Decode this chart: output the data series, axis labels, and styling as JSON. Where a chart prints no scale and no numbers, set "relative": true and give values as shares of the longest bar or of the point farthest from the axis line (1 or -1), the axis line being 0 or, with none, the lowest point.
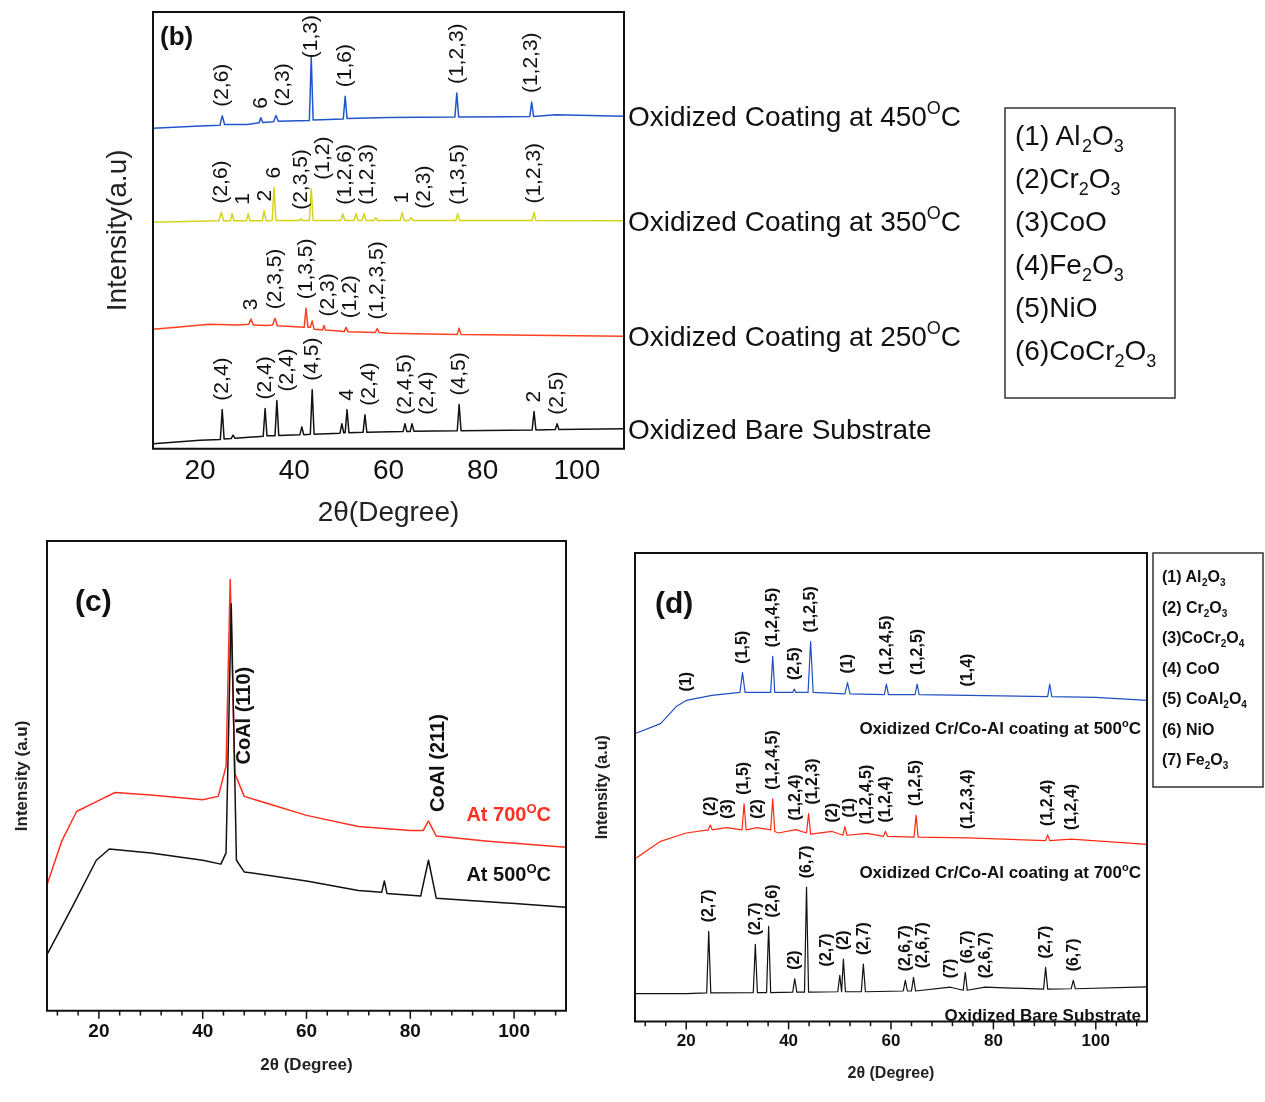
{
  "chart_data": [
    {
      "type": "line",
      "relative": true,
      "grid": false,
      "xlabel": "2θ(Degree)",
      "ylabel": "Intensity(a.u)",
      "xlim": [
        10,
        110
      ],
      "xticks": [
        20,
        40,
        60,
        80,
        100
      ],
      "annotations": [
        "(b)",
        "(1) Al$_{2}$O$_{3}$",
        "(2)Cr$_{2}$O$_{3}$",
        "(3)CoO",
        "(4)Fe$_{2}$O$_{3}$",
        "(5)NiO",
        "(6)CoCr$_{2}$O$_{3}$",
        {
          "text": "(2,6)",
          "x": 24.7,
          "y": 0.85
        },
        {
          "text": "6",
          "x": 32.9,
          "y": 0.845
        },
        {
          "text": "(2,3)",
          "x": 36.1,
          "y": 0.851
        },
        {
          "text": "(1,3)",
          "x": 43.6,
          "y": 1.0
        },
        {
          "text": "(1,6)",
          "x": 50.8,
          "y": 0.9
        },
        {
          "text": "(1,2,3)",
          "x": 74.5,
          "y": 0.908
        },
        {
          "text": "(1,2,3)",
          "x": 90.4,
          "y": 0.885
        },
        {
          "text": "(2,6)",
          "x": 24.5,
          "y": 0.603
        },
        {
          "text": "1",
          "x": 26.8,
          "y": 0.6
        },
        {
          "text": "2",
          "x": 33.6,
          "y": 0.608
        },
        {
          "text": "6",
          "x": 35.7,
          "y": 0.667
        },
        {
          "text": "(2,3,5)",
          "x": 41.4,
          "y": 0.587
        },
        {
          "text": "(1,2)",
          "x": 43.6,
          "y": 0.664
        },
        {
          "text": "(1,2,6)",
          "x": 50.3,
          "y": 0.6
        },
        {
          "text": "(1,2,3)",
          "x": 54.8,
          "y": 0.6
        },
        {
          "text": "1",
          "x": 62.9,
          "y": 0.603
        },
        {
          "text": "(2,3)",
          "x": 64.8,
          "y": 0.59
        },
        {
          "text": "(1,3,5)",
          "x": 74.7,
          "y": 0.6
        },
        {
          "text": "(1,2,3)",
          "x": 90.9,
          "y": 0.603
        },
        {
          "text": "3",
          "x": 30.8,
          "y": 0.331
        },
        {
          "text": "(2,3,5)",
          "x": 35.9,
          "y": 0.333
        },
        {
          "text": "(1,3,5)",
          "x": 42.5,
          "y": 0.359
        },
        {
          "text": "(2,3)",
          "x": 46.3,
          "y": 0.315
        },
        {
          "text": "(1,2)",
          "x": 51,
          "y": 0.31
        },
        {
          "text": "(1,2,3,5)",
          "x": 57.6,
          "y": 0.307
        },
        {
          "text": "(2,4)",
          "x": 24.7,
          "y": 0.1
        },
        {
          "text": "(2,4)",
          "x": 33.8,
          "y": 0.103
        },
        {
          "text": "(2,4)",
          "x": 36.3,
          "y": 0.123
        },
        {
          "text": "(4,5)",
          "x": 43.8,
          "y": 0.151
        },
        {
          "text": "4",
          "x": 51.2,
          "y": 0.1
        },
        {
          "text": "(2,4)",
          "x": 55,
          "y": 0.087
        },
        {
          "text": "(2,4,5)",
          "x": 63.5,
          "y": 0.064
        },
        {
          "text": "(2,4)",
          "x": 65,
          "y": 0.064
        },
        {
          "text": "(4,5)",
          "x": 75,
          "y": 0.113
        },
        {
          "text": "2",
          "x": 90.9,
          "y": 0.095
        },
        {
          "text": "(2,5)",
          "x": 95.8,
          "y": 0.064
        }
      ],
      "series": [
        {
          "name": "Oxidized Coating at 450$^{O}$C",
          "color": "#2255cc",
          "x": [
            10,
            20,
            24.2,
            24.7,
            25.2,
            30,
            32.5,
            32.9,
            33.3,
            35.6,
            36.1,
            36.6,
            43.2,
            43.6,
            44,
            50.4,
            50.8,
            51.2,
            60,
            74.1,
            74.5,
            74.9,
            90,
            90.4,
            90.8,
            95.5,
            110
          ],
          "values": [
            0.818,
            0.824,
            0.826,
            0.85,
            0.828,
            0.828,
            0.832,
            0.845,
            0.833,
            0.835,
            0.851,
            0.836,
            0.838,
            1.0,
            0.839,
            0.842,
            0.9,
            0.843,
            0.846,
            0.847,
            0.908,
            0.847,
            0.848,
            0.885,
            0.848,
            0.853,
            0.849
          ]
        },
        {
          "name": "Oxidized Coating at 350$^{O}$C",
          "color": "#d4d41a",
          "x": [
            10,
            24,
            24.5,
            25,
            26.4,
            26.8,
            27.2,
            29.8,
            30.2,
            30.6,
            33.2,
            33.6,
            34,
            35.3,
            35.7,
            36.1,
            41,
            41.4,
            41.8,
            43.2,
            43.6,
            44,
            49.9,
            50.3,
            50.7,
            52.7,
            53.1,
            53.5,
            54.4,
            54.8,
            55.2,
            56.9,
            57.3,
            57.7,
            62.5,
            62.9,
            63.3,
            64.4,
            64.8,
            65.2,
            74.3,
            74.7,
            75.1,
            90.5,
            90.9,
            91.3,
            110
          ],
          "values": [
            0.578,
            0.582,
            0.603,
            0.582,
            0.582,
            0.6,
            0.582,
            0.582,
            0.6,
            0.582,
            0.582,
            0.608,
            0.582,
            0.583,
            0.667,
            0.583,
            0.583,
            0.587,
            0.583,
            0.583,
            0.664,
            0.583,
            0.583,
            0.6,
            0.583,
            0.583,
            0.6,
            0.583,
            0.583,
            0.6,
            0.583,
            0.583,
            0.59,
            0.583,
            0.583,
            0.603,
            0.583,
            0.583,
            0.59,
            0.583,
            0.583,
            0.6,
            0.583,
            0.583,
            0.603,
            0.583,
            0.582
          ]
        },
        {
          "name": "Oxidized Coating at 250$^{O}$C",
          "color": "#ff4020",
          "x": [
            10,
            15,
            22,
            28,
            30.3,
            30.8,
            31.3,
            34,
            35.4,
            35.9,
            36.4,
            42.1,
            42.5,
            42.9,
            43.4,
            43.8,
            44.2,
            46,
            46.3,
            46.6,
            50,
            50.6,
            51,
            51.4,
            57.2,
            57.6,
            58,
            60,
            74.6,
            75,
            75.4,
            90,
            110
          ],
          "values": [
            0.305,
            0.31,
            0.318,
            0.316,
            0.318,
            0.331,
            0.316,
            0.315,
            0.316,
            0.333,
            0.314,
            0.31,
            0.359,
            0.31,
            0.31,
            0.326,
            0.305,
            0.303,
            0.315,
            0.303,
            0.3,
            0.299,
            0.31,
            0.299,
            0.297,
            0.307,
            0.297,
            0.295,
            0.292,
            0.308,
            0.292,
            0.29,
            0.287
          ]
        },
        {
          "name": "Oxidized Bare Substrate",
          "color": "#111111",
          "x": [
            10,
            20,
            24.3,
            24.7,
            25.1,
            26.6,
            27,
            27.4,
            33.4,
            33.8,
            34.2,
            35.9,
            36.3,
            36.7,
            41.2,
            41.6,
            42,
            43.4,
            43.8,
            44.2,
            49.7,
            50.1,
            50.5,
            50.8,
            51.2,
            51.6,
            54.6,
            55,
            55.4,
            63.1,
            63.5,
            63.9,
            64.6,
            65,
            65.4,
            74.6,
            75,
            75.4,
            90.5,
            90.9,
            91.3,
            95.4,
            95.8,
            96.2,
            110
          ],
          "values": [
            0.013,
            0.022,
            0.024,
            0.1,
            0.025,
            0.026,
            0.035,
            0.027,
            0.032,
            0.103,
            0.033,
            0.033,
            0.123,
            0.034,
            0.036,
            0.056,
            0.036,
            0.037,
            0.151,
            0.037,
            0.04,
            0.064,
            0.041,
            0.041,
            0.1,
            0.041,
            0.042,
            0.087,
            0.042,
            0.044,
            0.064,
            0.044,
            0.044,
            0.064,
            0.045,
            0.046,
            0.113,
            0.046,
            0.048,
            0.095,
            0.048,
            0.049,
            0.064,
            0.049,
            0.051
          ]
        }
      ]
    },
    {
      "type": "line",
      "relative": true,
      "grid": false,
      "xlabel": "2θ (Degree)",
      "ylabel": "Intensity (a.u)",
      "xlim": [
        10,
        110
      ],
      "xticks": [
        {
          "value": 12,
          "label": null
        },
        {
          "value": 16,
          "label": null
        },
        20,
        {
          "value": 24,
          "label": null
        },
        {
          "value": 28,
          "label": null
        },
        {
          "value": 32,
          "label": null
        },
        {
          "value": 36,
          "label": null
        },
        40,
        {
          "value": 44,
          "label": null
        },
        {
          "value": 48,
          "label": null
        },
        {
          "value": 52,
          "label": null
        },
        {
          "value": 56,
          "label": null
        },
        60,
        {
          "value": 64,
          "label": null
        },
        {
          "value": 68,
          "label": null
        },
        {
          "value": 72,
          "label": null
        },
        {
          "value": 76,
          "label": null
        },
        80,
        {
          "value": 84,
          "label": null
        },
        {
          "value": 88,
          "label": null
        },
        {
          "value": 92,
          "label": null
        },
        {
          "value": 96,
          "label": null
        },
        100,
        {
          "value": 104,
          "label": null
        },
        {
          "value": 108,
          "label": null
        }
      ],
      "annotations": [
        "(c)",
        {
          "text": "CoAl (110)",
          "x": 46.2,
          "y": 0.55
        },
        {
          "text": "CoAl (211)",
          "x": 83.5,
          "y": 0.44
        }
      ],
      "series": [
        {
          "name": "At 700$^{O}$C",
          "color": "#ff3020",
          "x": [
            10,
            12.8,
            15.7,
            20.2,
            23.1,
            30,
            40,
            43,
            44.5,
            45.3,
            46.2,
            48,
            60,
            70,
            80,
            82.5,
            83.5,
            85,
            95,
            110
          ],
          "values": [
            0.292,
            0.392,
            0.462,
            0.489,
            0.506,
            0.5,
            0.489,
            0.497,
            0.567,
            1.0,
            0.55,
            0.497,
            0.453,
            0.427,
            0.418,
            0.418,
            0.44,
            0.405,
            0.393,
            0.379
          ]
        },
        {
          "name": "At 500$^{O}$C",
          "color": "#111111",
          "x": [
            10,
            15,
            19.5,
            22,
            30,
            40,
            43.5,
            44.5,
            45.5,
            46.5,
            48,
            60,
            70,
            74.5,
            75,
            75.5,
            82,
            83.5,
            85,
            95,
            110
          ],
          "values": [
            0.13,
            0.244,
            0.349,
            0.375,
            0.366,
            0.349,
            0.34,
            0.366,
            0.943,
            0.349,
            0.322,
            0.301,
            0.279,
            0.275,
            0.301,
            0.272,
            0.266,
            0.349,
            0.261,
            0.253,
            0.24
          ]
        }
      ]
    },
    {
      "type": "line",
      "relative": true,
      "grid": false,
      "xlabel": "2θ (Degree)",
      "ylabel": "Intensity (a.u)",
      "xlim": [
        10,
        110
      ],
      "xticks": [
        {
          "value": 12,
          "label": null
        },
        {
          "value": 16,
          "label": null
        },
        20,
        {
          "value": 24,
          "label": null
        },
        {
          "value": 28,
          "label": null
        },
        {
          "value": 32,
          "label": null
        },
        {
          "value": 36,
          "label": null
        },
        40,
        {
          "value": 44,
          "label": null
        },
        {
          "value": 48,
          "label": null
        },
        {
          "value": 52,
          "label": null
        },
        {
          "value": 56,
          "label": null
        },
        60,
        {
          "value": 64,
          "label": null
        },
        {
          "value": 68,
          "label": null
        },
        {
          "value": 72,
          "label": null
        },
        {
          "value": 76,
          "label": null
        },
        80,
        {
          "value": 84,
          "label": null
        },
        {
          "value": 88,
          "label": null
        },
        {
          "value": 92,
          "label": null
        },
        {
          "value": 96,
          "label": null
        },
        100,
        {
          "value": 104,
          "label": null
        },
        {
          "value": 108,
          "label": null
        }
      ],
      "annotations": [
        "(d)",
        "(1) Al$_{2}$O$_{3}$",
        "(2) Cr$_{2}$O$_{3}$",
        "(3)CoCr$_{2}$O$_{4}$",
        "(4) CoO",
        "(5) CoAl$_{2}$O$_{4}$",
        "(6) NiO",
        "(7) Fe$_{2}$O$_{3}$",
        {
          "text": "(1)",
          "x": 20,
          "y": 0.845
        },
        {
          "text": "(1,5)",
          "x": 31,
          "y": 0.918
        },
        {
          "text": "(1,2,4,5)",
          "x": 36.9,
          "y": 0.961
        },
        {
          "text": "(2,5)",
          "x": 41.1,
          "y": 0.875
        },
        {
          "text": "(1,2,5)",
          "x": 44.3,
          "y": 1.0
        },
        {
          "text": "(1)",
          "x": 51.5,
          "y": 0.892
        },
        {
          "text": "(1,2,4,5)",
          "x": 59.1,
          "y": 0.888
        },
        {
          "text": "(1,2,5)",
          "x": 65.1,
          "y": 0.888
        },
        {
          "text": "(1,4)",
          "x": 75,
          "y": 0.858
        },
        {
          "text": "(2)",
          "x": 24.7,
          "y": 0.517
        },
        {
          "text": "(3)",
          "x": 27.8,
          "y": 0.51
        },
        {
          "text": "(1,5)",
          "x": 31.3,
          "y": 0.573
        },
        {
          "text": "(2)",
          "x": 33.9,
          "y": 0.51
        },
        {
          "text": "(1,2,4,5)",
          "x": 36.9,
          "y": 0.586
        },
        {
          "text": "(1,2,4)",
          "x": 41.4,
          "y": 0.505
        },
        {
          "text": "(1,2,3)",
          "x": 43.9,
          "y": 0.547
        },
        {
          "text": "(2)",
          "x": 48.5,
          "y": 0.5
        },
        {
          "text": "(1)",
          "x": 51,
          "y": 0.513
        },
        {
          "text": "(1,2,4,5)",
          "x": 55.3,
          "y": 0.495
        },
        {
          "text": "(1,2,4)",
          "x": 58.9,
          "y": 0.5
        },
        {
          "text": "(1,2,5)",
          "x": 64.9,
          "y": 0.543
        },
        {
          "text": "(1,2,3,4)",
          "x": 75,
          "y": 0.483
        },
        {
          "text": "(1,2,4)",
          "x": 90.6,
          "y": 0.491
        },
        {
          "text": "(1,2,4)",
          "x": 95.2,
          "y": 0.48
        },
        {
          "text": "(2,7)",
          "x": 24.4,
          "y": 0.237
        },
        {
          "text": "(2,7)",
          "x": 33.5,
          "y": 0.203
        },
        {
          "text": "(2,6)",
          "x": 36.1,
          "y": 0.25
        },
        {
          "text": "(2)",
          "x": 41.2,
          "y": 0.112
        },
        {
          "text": "(6,7)",
          "x": 43.5,
          "y": 0.353
        },
        {
          "text": "(2)",
          "x": 50.7,
          "y": 0.164
        },
        {
          "text": "(2,7)",
          "x": 50,
          "y": 0.121
        },
        {
          "text": "(2,7)",
          "x": 54.6,
          "y": 0.151
        },
        {
          "text": "(2,6,7)",
          "x": 62.8,
          "y": 0.108
        },
        {
          "text": "(2,6,7)",
          "x": 64.4,
          "y": 0.116
        },
        {
          "text": "(7)",
          "x": 71.6,
          "y": 0.09
        },
        {
          "text": "(6,7)",
          "x": 74.5,
          "y": 0.129
        },
        {
          "text": "(2,6,7)",
          "x": 78.4,
          "y": 0.09
        },
        {
          "text": "(2,7)",
          "x": 90.2,
          "y": 0.142
        },
        {
          "text": "(6,7)",
          "x": 95.6,
          "y": 0.108
        }
      ],
      "series": [
        {
          "name": "Oxidized Cr/Co-Al coating at 500$^{o}$C",
          "color": "#2050c0",
          "x": [
            10.3,
            15,
            18,
            20,
            25,
            30.5,
            31,
            31.5,
            36.5,
            36.9,
            37.3,
            40.8,
            41.1,
            41.4,
            43.8,
            44.3,
            44.8,
            51,
            51.5,
            52,
            58.7,
            59.1,
            59.5,
            64.7,
            65.1,
            65.5,
            75,
            90.6,
            91,
            91.4,
            100,
            110
          ],
          "values": [
            0.759,
            0.784,
            0.828,
            0.845,
            0.858,
            0.866,
            0.918,
            0.866,
            0.866,
            0.961,
            0.866,
            0.866,
            0.875,
            0.866,
            0.866,
            1.0,
            0.866,
            0.862,
            0.892,
            0.862,
            0.86,
            0.888,
            0.86,
            0.86,
            0.888,
            0.86,
            0.858,
            0.855,
            0.888,
            0.855,
            0.853,
            0.845
          ]
        },
        {
          "name": "Oxidized Cr/Co-Al coating at 700$^{o}$C",
          "color": "#ff2a10",
          "x": [
            10.3,
            15,
            20,
            24.3,
            24.7,
            25.1,
            27.8,
            30.9,
            31.3,
            31.7,
            33.9,
            36.5,
            36.9,
            37.3,
            38,
            41.4,
            43.5,
            43.9,
            44.3,
            48.5,
            50.6,
            51,
            51.4,
            55.3,
            58.5,
            58.9,
            59.3,
            64.5,
            64.9,
            65.3,
            75,
            90.2,
            90.6,
            91,
            95.2,
            110
          ],
          "values": [
            0.431,
            0.474,
            0.496,
            0.504,
            0.517,
            0.504,
            0.51,
            0.504,
            0.573,
            0.504,
            0.51,
            0.504,
            0.586,
            0.5,
            0.496,
            0.505,
            0.496,
            0.547,
            0.493,
            0.5,
            0.49,
            0.513,
            0.49,
            0.495,
            0.487,
            0.5,
            0.487,
            0.485,
            0.543,
            0.485,
            0.483,
            0.476,
            0.491,
            0.476,
            0.48,
            0.466
          ]
        },
        {
          "name": "Oxidized Bare Substrate",
          "color": "#111111",
          "x": [
            10,
            20,
            24,
            24.4,
            24.8,
            33.1,
            33.5,
            33.9,
            35.7,
            36.1,
            36.5,
            40.8,
            41.2,
            41.6,
            43.1,
            43.5,
            43.9,
            49.6,
            50,
            50.35,
            50.7,
            51.1,
            54.2,
            54.6,
            55,
            62.4,
            62.8,
            63.2,
            64,
            64.4,
            64.8,
            71.6,
            74.1,
            74.5,
            74.9,
            78.4,
            89.8,
            90.2,
            90.6,
            95.2,
            95.6,
            96,
            110
          ],
          "values": [
            0.073,
            0.073,
            0.075,
            0.237,
            0.075,
            0.076,
            0.203,
            0.076,
            0.076,
            0.25,
            0.076,
            0.077,
            0.112,
            0.077,
            0.077,
            0.353,
            0.077,
            0.078,
            0.121,
            0.078,
            0.164,
            0.078,
            0.078,
            0.151,
            0.078,
            0.08,
            0.108,
            0.08,
            0.08,
            0.116,
            0.08,
            0.09,
            0.082,
            0.129,
            0.082,
            0.09,
            0.085,
            0.142,
            0.085,
            0.086,
            0.108,
            0.086,
            0.091
          ]
        }
      ]
    }
  ]
}
